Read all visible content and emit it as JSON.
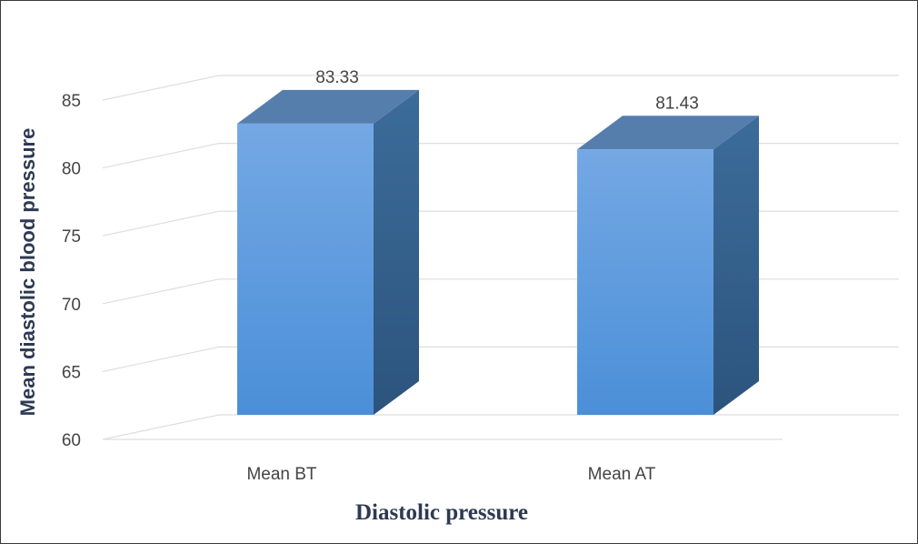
{
  "chart_data": {
    "type": "bar",
    "title": "",
    "categories": [
      "Mean BT",
      "Mean AT"
    ],
    "values": [
      83.33,
      81.43
    ],
    "value_labels": [
      "83.33",
      "81.43"
    ],
    "xlabel": "Diastolic pressure",
    "ylabel": "Mean diastolic blood pressure",
    "ylim": [
      60,
      85
    ],
    "yticks": [
      60,
      65,
      70,
      75,
      80,
      85
    ],
    "grid": true,
    "style": "3d-column",
    "colors": {
      "bar_front_top": "#74a8e4",
      "bar_front_bottom": "#4b8fd8",
      "bar_side": "#35638f",
      "bar_top": "#557ead",
      "grid": "#dedede",
      "text": "#444444",
      "axis_title": "#2e3a52"
    }
  }
}
